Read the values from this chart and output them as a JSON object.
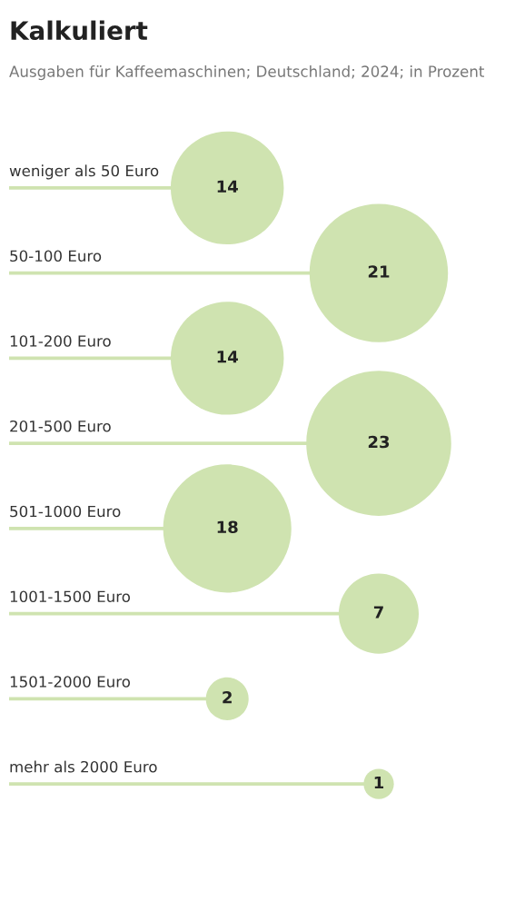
{
  "chart_data": {
    "type": "other",
    "title": "Kalkuliert",
    "subtitle": "Ausgaben für Kaffeemaschinen; Deutschland; 2024; in Prozent",
    "categories": [
      "weniger als 50 Euro",
      "50-100 Euro",
      "101-200 Euro",
      "201-500 Euro",
      "501-1000 Euro",
      "1001-1500 Euro",
      "1501-2000 Euro",
      "mehr als 2000 Euro"
    ],
    "values": [
      14,
      21,
      14,
      23,
      18,
      7,
      2,
      1
    ],
    "color": "#cfe3b0",
    "data_labels": true
  }
}
